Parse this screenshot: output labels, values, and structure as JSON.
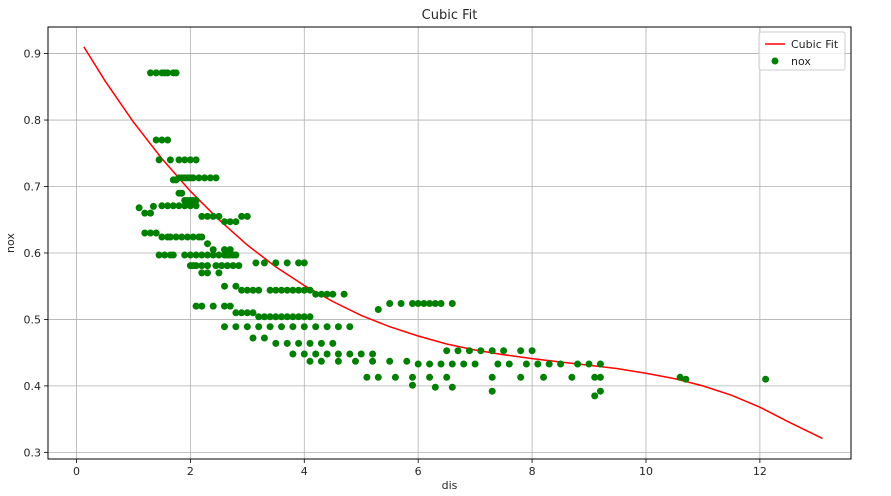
{
  "chart_data": {
    "type": "scatter",
    "title": "Cubic Fit",
    "xlabel": "dis",
    "ylabel": "nox",
    "xlim": [
      -0.5,
      13.6
    ],
    "ylim": [
      0.29,
      0.94
    ],
    "xticks": [
      0,
      2,
      4,
      6,
      8,
      10,
      12
    ],
    "yticks": [
      0.3,
      0.4,
      0.5,
      0.6,
      0.7,
      0.8,
      0.9
    ],
    "grid": true,
    "legend_position": "top-right",
    "colors": {
      "fit": "#ff0000",
      "points": "#008000",
      "grid": "#b0b0b0",
      "frame": "#000000"
    },
    "series": [
      {
        "name": "Cubic Fit",
        "kind": "line",
        "x": [
          0.13,
          0.5,
          1.0,
          1.5,
          2.0,
          2.5,
          3.0,
          3.5,
          4.0,
          4.5,
          5.0,
          5.5,
          6.0,
          6.5,
          7.0,
          7.5,
          8.0,
          8.5,
          9.0,
          9.5,
          10.0,
          10.5,
          11.0,
          11.5,
          12.0,
          12.5,
          13.1
        ],
        "y": [
          0.91,
          0.859,
          0.797,
          0.742,
          0.693,
          0.65,
          0.612,
          0.579,
          0.551,
          0.527,
          0.506,
          0.489,
          0.475,
          0.463,
          0.454,
          0.447,
          0.441,
          0.436,
          0.431,
          0.426,
          0.419,
          0.411,
          0.4,
          0.386,
          0.368,
          0.346,
          0.321
        ]
      },
      {
        "name": "nox",
        "kind": "scatter",
        "x": [
          1.3,
          1.4,
          1.5,
          1.55,
          1.6,
          1.7,
          1.75,
          1.4,
          1.5,
          1.6,
          1.45,
          1.65,
          1.8,
          1.9,
          2.0,
          2.1,
          1.1,
          1.2,
          1.3,
          1.35,
          1.5,
          1.6,
          1.7,
          1.8,
          1.9,
          2.0,
          2.1,
          1.2,
          1.3,
          1.4,
          1.5,
          1.6,
          1.65,
          1.75,
          1.85,
          1.95,
          2.05,
          2.15,
          2.2,
          2.3,
          2.4,
          2.6,
          2.7,
          1.45,
          1.55,
          1.65,
          1.7,
          1.9,
          2.0,
          2.1,
          2.2,
          2.3,
          2.4,
          2.5,
          2.6,
          2.65,
          2.7,
          2.75,
          2.8,
          1.7,
          1.75,
          1.8,
          1.85,
          1.9,
          1.95,
          2.0,
          2.05,
          2.15,
          2.25,
          2.35,
          2.45,
          1.8,
          1.85,
          1.9,
          1.95,
          2.0,
          2.05,
          2.1,
          2.2,
          2.3,
          2.4,
          2.5,
          2.6,
          2.7,
          2.8,
          2.9,
          3.0,
          3.15,
          3.3,
          3.5,
          3.7,
          3.9,
          4.0,
          2.0,
          2.05,
          2.1,
          2.2,
          2.3,
          2.45,
          2.55,
          2.65,
          2.75,
          2.85,
          2.2,
          2.3,
          2.5,
          2.6,
          2.8,
          2.9,
          3.0,
          3.1,
          3.2,
          3.4,
          3.5,
          3.6,
          3.7,
          3.8,
          3.9,
          4.0,
          4.1,
          4.2,
          4.3,
          4.4,
          4.5,
          4.7,
          2.1,
          2.2,
          2.4,
          2.6,
          2.7,
          2.8,
          2.9,
          3.0,
          3.1,
          3.2,
          3.3,
          3.4,
          3.5,
          3.6,
          3.7,
          3.8,
          3.9,
          4.0,
          4.1,
          2.6,
          2.8,
          3.0,
          3.2,
          3.4,
          3.6,
          3.8,
          4.0,
          4.2,
          4.4,
          4.6,
          4.8,
          3.1,
          3.3,
          3.5,
          3.7,
          3.9,
          4.1,
          4.3,
          4.5,
          3.8,
          4.0,
          4.2,
          4.4,
          4.6,
          4.8,
          5.0,
          5.2,
          4.1,
          4.3,
          4.6,
          4.9,
          5.2,
          5.5,
          5.8,
          5.3,
          5.5,
          5.7,
          5.9,
          6.0,
          6.1,
          6.2,
          6.3,
          6.4,
          6.6,
          6.5,
          6.7,
          6.9,
          7.1,
          7.3,
          7.5,
          7.8,
          8.0,
          6.0,
          6.2,
          6.4,
          6.6,
          6.8,
          7.0,
          7.4,
          7.6,
          7.9,
          8.1,
          8.3,
          8.5,
          8.8,
          9.0,
          9.2,
          5.1,
          5.3,
          5.6,
          5.9,
          6.2,
          6.5,
          7.3,
          7.8,
          8.2,
          8.7,
          9.1,
          9.2,
          10.6,
          10.7,
          12.1,
          5.9,
          6.3,
          6.6,
          7.3,
          9.1,
          9.2
        ],
        "y": [
          0.871,
          0.871,
          0.871,
          0.871,
          0.871,
          0.871,
          0.871,
          0.77,
          0.77,
          0.77,
          0.74,
          0.74,
          0.74,
          0.74,
          0.74,
          0.74,
          0.668,
          0.66,
          0.66,
          0.67,
          0.671,
          0.671,
          0.671,
          0.671,
          0.671,
          0.671,
          0.671,
          0.63,
          0.63,
          0.63,
          0.624,
          0.624,
          0.624,
          0.624,
          0.624,
          0.624,
          0.624,
          0.624,
          0.624,
          0.614,
          0.605,
          0.605,
          0.605,
          0.597,
          0.597,
          0.597,
          0.597,
          0.597,
          0.597,
          0.597,
          0.597,
          0.597,
          0.597,
          0.597,
          0.597,
          0.597,
          0.597,
          0.597,
          0.597,
          0.71,
          0.71,
          0.713,
          0.713,
          0.713,
          0.713,
          0.713,
          0.713,
          0.713,
          0.713,
          0.713,
          0.713,
          0.69,
          0.69,
          0.679,
          0.679,
          0.679,
          0.679,
          0.679,
          0.655,
          0.655,
          0.655,
          0.655,
          0.647,
          0.647,
          0.647,
          0.655,
          0.655,
          0.585,
          0.585,
          0.585,
          0.585,
          0.585,
          0.585,
          0.581,
          0.581,
          0.581,
          0.581,
          0.581,
          0.581,
          0.581,
          0.581,
          0.581,
          0.581,
          0.57,
          0.57,
          0.57,
          0.55,
          0.55,
          0.544,
          0.544,
          0.544,
          0.544,
          0.544,
          0.544,
          0.544,
          0.544,
          0.544,
          0.544,
          0.544,
          0.544,
          0.538,
          0.538,
          0.538,
          0.538,
          0.538,
          0.52,
          0.52,
          0.52,
          0.52,
          0.52,
          0.51,
          0.51,
          0.51,
          0.51,
          0.504,
          0.504,
          0.504,
          0.504,
          0.504,
          0.504,
          0.504,
          0.504,
          0.504,
          0.504,
          0.489,
          0.489,
          0.489,
          0.489,
          0.489,
          0.489,
          0.489,
          0.489,
          0.489,
          0.489,
          0.489,
          0.489,
          0.472,
          0.472,
          0.464,
          0.464,
          0.464,
          0.464,
          0.464,
          0.464,
          0.448,
          0.448,
          0.448,
          0.448,
          0.448,
          0.448,
          0.448,
          0.448,
          0.437,
          0.437,
          0.437,
          0.437,
          0.437,
          0.437,
          0.437,
          0.515,
          0.524,
          0.524,
          0.524,
          0.524,
          0.524,
          0.524,
          0.524,
          0.524,
          0.524,
          0.453,
          0.453,
          0.453,
          0.453,
          0.453,
          0.453,
          0.453,
          0.453,
          0.433,
          0.433,
          0.433,
          0.433,
          0.433,
          0.433,
          0.433,
          0.433,
          0.433,
          0.433,
          0.433,
          0.433,
          0.433,
          0.433,
          0.433,
          0.413,
          0.413,
          0.413,
          0.413,
          0.413,
          0.413,
          0.413,
          0.413,
          0.413,
          0.413,
          0.413,
          0.413,
          0.413,
          0.41,
          0.41,
          0.401,
          0.398,
          0.398,
          0.392,
          0.385,
          0.392
        ]
      }
    ]
  }
}
